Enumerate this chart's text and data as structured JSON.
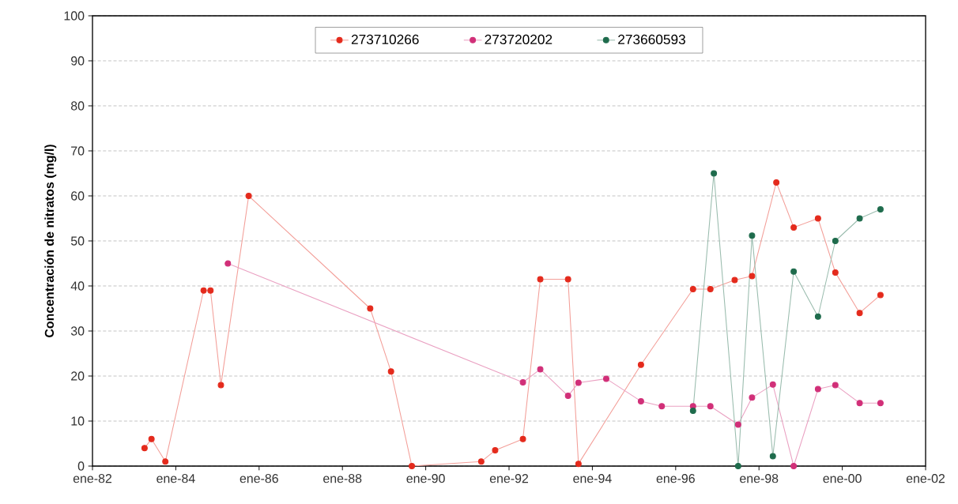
{
  "chart_data": {
    "type": "line",
    "ylabel": "Concentración de nitratos (mg/l)",
    "xlim": [
      "1982-01",
      "2002-01"
    ],
    "xticks": [
      {
        "value": "1982-01",
        "label": "ene-82"
      },
      {
        "value": "1984-01",
        "label": "ene-84"
      },
      {
        "value": "1986-01",
        "label": "ene-86"
      },
      {
        "value": "1988-01",
        "label": "ene-88"
      },
      {
        "value": "1990-01",
        "label": "ene-90"
      },
      {
        "value": "1992-01",
        "label": "ene-92"
      },
      {
        "value": "1994-01",
        "label": "ene-94"
      },
      {
        "value": "1996-01",
        "label": "ene-96"
      },
      {
        "value": "1998-01",
        "label": "ene-98"
      },
      {
        "value": "2000-01",
        "label": "ene-00"
      },
      {
        "value": "2002-01",
        "label": "ene-02"
      }
    ],
    "ylim": [
      0,
      100
    ],
    "yticks": [
      0,
      10,
      20,
      30,
      40,
      50,
      60,
      70,
      80,
      90,
      100
    ],
    "grid": "y",
    "legend": "top",
    "marker": "circle",
    "line_style": "solid",
    "series": [
      {
        "name": "273710266",
        "color": "#e42a1c",
        "x": [
          "1983-04",
          "1983-06",
          "1983-10",
          "1984-09",
          "1984-11",
          "1985-02",
          "1985-10",
          "1988-09",
          "1989-03",
          "1989-09",
          "1991-05",
          "1991-09",
          "1992-05",
          "1992-10",
          "1993-06",
          "1993-09",
          "1995-03",
          "1996-06",
          "1996-11",
          "1997-06",
          "1997-11",
          "1998-06",
          "1998-11",
          "1999-06",
          "1999-11",
          "2000-06",
          "2000-12"
        ],
        "values": [
          4,
          6,
          1,
          39,
          39,
          18,
          60,
          35,
          21,
          0,
          1,
          3.5,
          6,
          41.5,
          41.5,
          0.5,
          22.5,
          39.3,
          39.3,
          41.3,
          42.2,
          63,
          53,
          55,
          43,
          34,
          38
        ]
      },
      {
        "name": "273720202",
        "color": "#d12f78",
        "x": [
          "1985-04",
          "1992-05",
          "1992-10",
          "1993-06",
          "1993-09",
          "1994-05",
          "1995-03",
          "1995-09",
          "1996-06",
          "1996-11",
          "1997-07",
          "1997-11",
          "1998-05",
          "1998-11",
          "1999-06",
          "1999-11",
          "2000-06",
          "2000-12"
        ],
        "values": [
          45,
          18.6,
          21.5,
          15.6,
          18.5,
          19.4,
          14.4,
          13.3,
          13.3,
          13.3,
          9.2,
          15.2,
          18.1,
          0,
          17.1,
          18,
          14,
          14
        ]
      },
      {
        "name": "273660593",
        "color": "#1e6b4c",
        "x": [
          "1996-06",
          "1996-12",
          "1997-07",
          "1997-11",
          "1998-05",
          "1998-11",
          "1999-06",
          "1999-11",
          "2000-06",
          "2000-12"
        ],
        "values": [
          12.3,
          65,
          0,
          51.2,
          2.2,
          43.2,
          33.2,
          50,
          55,
          57
        ]
      }
    ]
  }
}
